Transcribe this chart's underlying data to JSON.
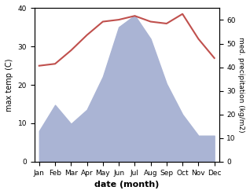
{
  "months": [
    "Jan",
    "Feb",
    "Mar",
    "Apr",
    "May",
    "Jun",
    "Jul",
    "Aug",
    "Sep",
    "Oct",
    "Nov",
    "Dec"
  ],
  "temp": [
    25,
    25.5,
    29,
    33,
    36.5,
    37,
    38,
    36.5,
    36,
    38.5,
    32,
    27
  ],
  "precip": [
    13,
    24,
    16,
    22,
    36,
    57,
    62,
    52,
    33,
    20,
    11,
    11
  ],
  "temp_color": "#c0504d",
  "precip_fill_color": "#aab4d4",
  "ylabel_left": "max temp (C)",
  "ylabel_right": "med. precipitation (kg/m2)",
  "xlabel": "date (month)",
  "ylim_left": [
    0,
    40
  ],
  "ylim_right": [
    0,
    65
  ],
  "yticks_left": [
    0,
    10,
    20,
    30,
    40
  ],
  "yticks_right": [
    0,
    10,
    20,
    30,
    40,
    50,
    60
  ],
  "bg_color": "#ffffff",
  "line_width": 1.5
}
